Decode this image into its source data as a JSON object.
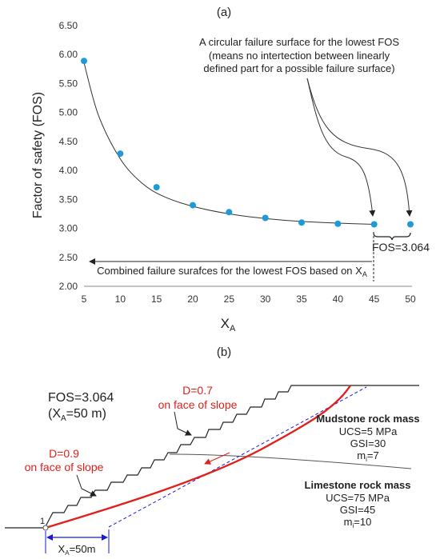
{
  "panel_a": {
    "label": "(a)",
    "chart_data": {
      "type": "scatter",
      "xlabel_main": "X",
      "xlabel_sub": "A",
      "ylabel": "Factor of safety (FOS)",
      "xlim": [
        5,
        50
      ],
      "ylim": [
        2.0,
        6.5
      ],
      "x_ticks": [
        "5",
        "10",
        "15",
        "20",
        "25",
        "30",
        "35",
        "40",
        "45",
        "50"
      ],
      "y_ticks": [
        "2.00",
        "2.50",
        "3.00",
        "3.50",
        "4.00",
        "4.50",
        "5.00",
        "5.50",
        "6.00",
        "6.50"
      ],
      "grid": false,
      "series": [
        {
          "x": [
            5,
            10,
            15,
            20,
            25,
            30,
            35,
            40,
            45,
            50
          ],
          "y": [
            5.89,
            4.29,
            3.71,
            3.4,
            3.28,
            3.18,
            3.1,
            3.08,
            3.07,
            3.07
          ],
          "color": "#1f9ad6"
        }
      ],
      "trend_line": {
        "x": [
          5,
          7,
          10,
          13,
          16,
          20,
          25,
          30,
          35,
          40,
          45
        ],
        "y": [
          5.86,
          4.95,
          4.2,
          3.78,
          3.55,
          3.38,
          3.25,
          3.17,
          3.12,
          3.09,
          3.07
        ]
      },
      "annotations": {
        "circular_line1": "A circular failure surface for the lowest FOS",
        "circular_line2": "(means no intertection between linearly",
        "circular_line3": "defined part for a possible failure surface)",
        "fos_label": "FOS=3.064",
        "combined_main": "Combined failure surafces for the lowest FOS based on X",
        "combined_sub": "A"
      }
    }
  },
  "panel_b": {
    "label": "(b)",
    "fos_line": "FOS=3.064",
    "xa_line_main": "(X",
    "xa_line_sub": "A",
    "xa_line_tail": "=50 m)",
    "d07_line1": "D=0.7",
    "d07_line2": "on face of slope",
    "d09_line1": "D=0.9",
    "d09_line2": "on face of slope",
    "mudstone": {
      "title": "Mudstone rock mass",
      "ucs": "UCS=5 MPa",
      "gsi": "GSI=30",
      "mi_main": "m",
      "mi_sub": "i",
      "mi_tail": "=7"
    },
    "limestone": {
      "title": "Limestone rock mass",
      "ucs": "UCS=75 MPa",
      "gsi": "GSI=45",
      "mi_main": "m",
      "mi_sub": "i",
      "mi_tail": "=10"
    },
    "point_label": "1",
    "xa_dim_main": "X",
    "xa_dim_sub": "A",
    "xa_dim_tail": "=50m"
  },
  "colors": {
    "points": "#1f9ad6",
    "failure_surface": "#e0201b",
    "dashed_line": "#1a1ad6",
    "dimension": "#1a1ad6"
  }
}
